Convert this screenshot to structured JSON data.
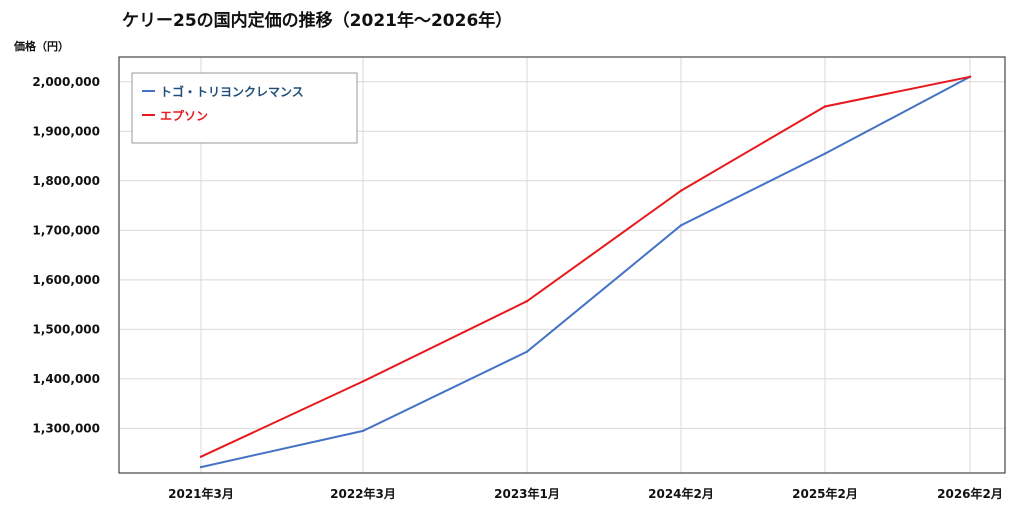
{
  "chart_data": {
    "type": "line",
    "title": "ケリー25の国内定価の推移（2021年〜2026年）",
    "ylabel": "価格（円）",
    "xlabel": "",
    "categories": [
      "2021年3月",
      "2022年3月",
      "2023年1月",
      "2024年2月",
      "2025年2月",
      "2026年2月"
    ],
    "series": [
      {
        "name": "トゴ・トリヨンクレマンス",
        "color": "#4472C4",
        "values": [
          1222000,
          1295000,
          1455000,
          1710000,
          1855000,
          2010000
        ]
      },
      {
        "name": "エプソン",
        "color": "#E8191D",
        "values": [
          1243000,
          1395000,
          1557000,
          1780000,
          1950000,
          2010000
        ]
      }
    ],
    "ylim": [
      1210000,
      2050000
    ],
    "yticks": [
      1300000,
      1400000,
      1500000,
      1600000,
      1700000,
      1800000,
      1900000,
      2000000
    ],
    "ytick_labels": [
      "1,300,000",
      "1,400,000",
      "1,500,000",
      "1,600,000",
      "1,700,000",
      "1,800,000",
      "1,900,000",
      "2,000,000"
    ],
    "grid": true,
    "legend_position": "top-left"
  }
}
